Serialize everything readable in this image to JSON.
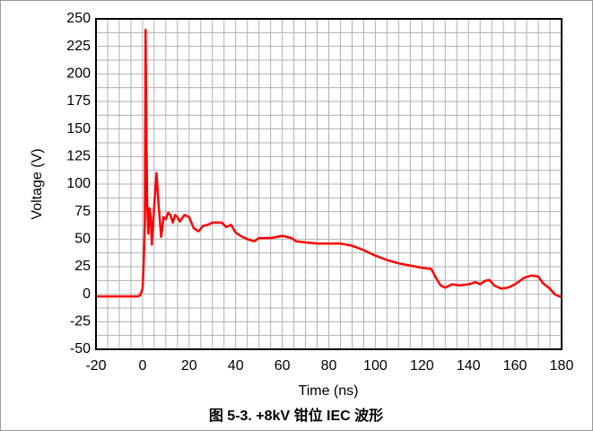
{
  "chart_data": {
    "type": "line",
    "caption": "图 5-3. +8kV 钳位 IEC 波形",
    "xlabel": "Time (ns)",
    "ylabel": "Voltage (V)",
    "x": [
      -20,
      -10,
      -2,
      -1,
      0,
      0.5,
      1,
      1.3,
      1.6,
      2,
      2.5,
      3,
      3.5,
      4,
      5,
      6,
      7,
      8,
      9,
      10,
      11,
      12,
      13,
      14,
      15,
      16,
      18,
      20,
      22,
      24,
      26,
      28,
      30,
      34,
      36,
      38,
      40,
      42,
      45,
      48,
      50,
      55,
      60,
      64,
      66,
      70,
      75,
      80,
      85,
      90,
      95,
      100,
      105,
      110,
      115,
      120,
      124,
      126,
      128,
      130,
      133,
      136,
      140,
      143,
      145,
      147,
      149,
      151,
      154,
      157,
      160,
      162,
      164,
      167,
      170,
      172,
      175,
      177,
      179,
      180
    ],
    "values": [
      -2,
      -2,
      -2,
      -1,
      5,
      30,
      65,
      240,
      160,
      80,
      55,
      78,
      70,
      45,
      80,
      110,
      78,
      52,
      70,
      68,
      74,
      72,
      65,
      72,
      70,
      66,
      72,
      70,
      60,
      57,
      62,
      63,
      65,
      65,
      61,
      63,
      56,
      53,
      50,
      48,
      51,
      51,
      53,
      51,
      48,
      47,
      46,
      46,
      46,
      44,
      40,
      35,
      31,
      28,
      26,
      24,
      23,
      15,
      8,
      6,
      9,
      8,
      9,
      11,
      9,
      12,
      13,
      8,
      5,
      6,
      9,
      12,
      15,
      17,
      16,
      10,
      5,
      0,
      -2,
      -2
    ],
    "color": "#ff0000",
    "xlim": [
      -20,
      180
    ],
    "xticks": [
      -20,
      0,
      20,
      40,
      60,
      80,
      100,
      120,
      140,
      160,
      180
    ],
    "ylim": [
      -50,
      250
    ],
    "yticks": [
      -50,
      -25,
      0,
      25,
      50,
      75,
      100,
      125,
      150,
      175,
      200,
      225,
      250
    ],
    "grid": true
  }
}
